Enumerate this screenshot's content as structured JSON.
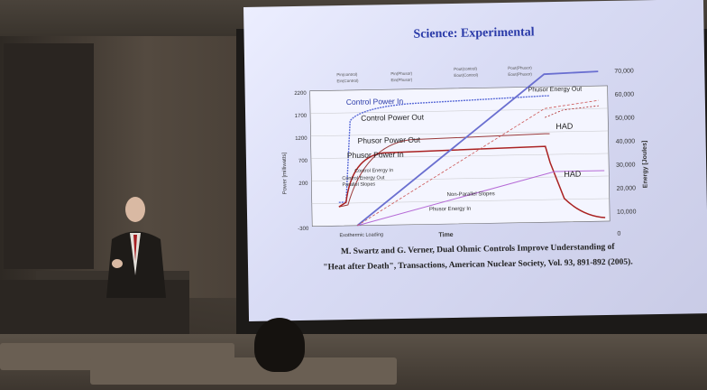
{
  "slide": {
    "title": "Science: Experimental",
    "caption_line1": "M. Swartz and G. Verner, Dual Ohmic Controls Improve Understanding of",
    "caption_line2": "\"Heat after Death\", Transactions, American Nuclear Society,  Vol. 93, 891-892 (2005)."
  },
  "chart_data": {
    "type": "line",
    "left_axis_label": "Power [milliwatts]",
    "right_axis_label": "Energy [Joules]",
    "x_label": "Time",
    "left_ticks": [
      "2200",
      "1700",
      "1200",
      "700",
      "200",
      "-300"
    ],
    "right_ticks": [
      "70,000",
      "60,000",
      "50,000",
      "40,000",
      "30,000",
      "20,000",
      "10,000",
      "0"
    ],
    "legend": [
      "Pin(control)",
      "Pin(Phusor)",
      "Pout(control)",
      "Pout(Phusor)",
      "Ein(Control)",
      "Ein(Phusor)",
      "Eout(Control)",
      "Eout(Phusor)"
    ],
    "annotations": [
      "Control Power In",
      "Control Power Out",
      "Phusor Power Out",
      "Phusor Power In",
      "Phusor Energy Out",
      "HAD",
      "HAD",
      "Control Energy In",
      "Control Energy Out",
      "Parallel Slopes",
      "Non-Parallel Slopes",
      "Phusor Energy In",
      "Exothermic Loading"
    ]
  }
}
